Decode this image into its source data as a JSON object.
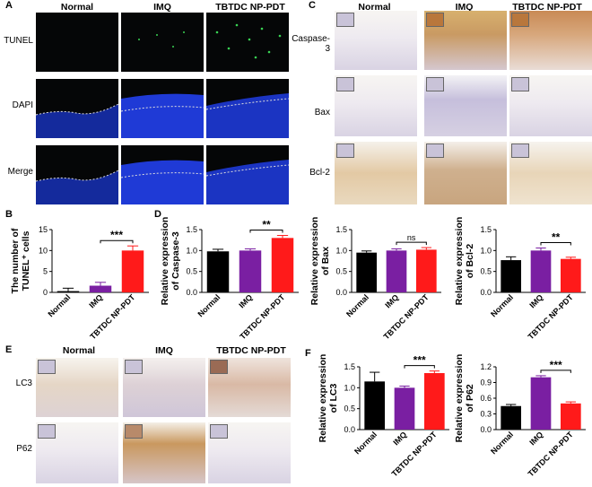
{
  "panels": {
    "A": {
      "letter": "A",
      "cols": [
        "Normal",
        "IMQ",
        "TBTDC NP-PDT"
      ],
      "rows": [
        "TUNEL",
        "DAPI",
        "Merge"
      ]
    },
    "C": {
      "letter": "C",
      "cols": [
        "Normal",
        "IMQ",
        "TBTDC NP-PDT"
      ],
      "rows": [
        "Caspase-3",
        "Bax",
        "Bcl-2"
      ]
    },
    "E": {
      "letter": "E",
      "cols": [
        "Normal",
        "IMQ",
        "TBTDC NP-PDT"
      ],
      "rows": [
        "LC3",
        "P62"
      ]
    },
    "B": {
      "letter": "B"
    },
    "D": {
      "letter": "D"
    },
    "F": {
      "letter": "F"
    }
  },
  "colors": {
    "Normal": "#000000",
    "IMQ": "#7a1fa2",
    "TBTDC NP-PDT": "#ff1a1a",
    "tunel_green": "#39d353",
    "dapi_blue": "#1f3ad6",
    "ihc_brown": "#b9773c",
    "ihc_purple": "#8f86b8"
  },
  "chart_data": [
    {
      "id": "B",
      "type": "bar",
      "categories": [
        "Normal",
        "IMQ",
        "TBTDC NP-PDT"
      ],
      "values": [
        0.3,
        1.6,
        10
      ],
      "errors": [
        0.7,
        0.8,
        1.1
      ],
      "ylabel": "The number of TUNEL⁺ cells",
      "ylim": [
        0,
        15
      ],
      "yticks": [
        0,
        5,
        10,
        15
      ],
      "sig": {
        "from": 1,
        "to": 2,
        "label": "***"
      }
    },
    {
      "id": "D",
      "type": "bar",
      "categories": [
        "Normal",
        "IMQ",
        "TBTDC NP-PDT"
      ],
      "values": [
        0.98,
        1.0,
        1.3
      ],
      "errors": [
        0.05,
        0.04,
        0.06
      ],
      "ylabel": "Relative expression of Caspase-3",
      "ylim": [
        0,
        1.5
      ],
      "yticks": [
        "0.0",
        "0.5",
        "1.0",
        "1.5"
      ],
      "sig": {
        "from": 1,
        "to": 2,
        "label": "**"
      }
    },
    {
      "id": "Bax",
      "type": "bar",
      "categories": [
        "Normal",
        "IMQ",
        "TBTDC NP-PDT"
      ],
      "values": [
        0.95,
        1.0,
        1.02
      ],
      "errors": [
        0.04,
        0.04,
        0.05
      ],
      "ylabel": "Relative expression of Bax",
      "ylim": [
        0,
        1.5
      ],
      "yticks": [
        "0.0",
        "0.5",
        "1.0",
        "1.5"
      ],
      "sig": {
        "from": 1,
        "to": 2,
        "label": "ns"
      }
    },
    {
      "id": "Bcl2",
      "type": "bar",
      "categories": [
        "Normal",
        "IMQ",
        "TBTDC NP-PDT"
      ],
      "values": [
        0.77,
        1.0,
        0.8
      ],
      "errors": [
        0.08,
        0.06,
        0.04
      ],
      "ylabel": "Relative expression of Bcl-2",
      "ylim": [
        0,
        1.5
      ],
      "yticks": [
        "0.0",
        "0.5",
        "1.0",
        "1.5"
      ],
      "sig": {
        "from": 1,
        "to": 2,
        "label": "**"
      }
    },
    {
      "id": "LC3",
      "type": "bar",
      "categories": [
        "Normal",
        "IMQ",
        "TBTDC NP-PDT"
      ],
      "values": [
        1.15,
        1.0,
        1.35
      ],
      "errors": [
        0.22,
        0.04,
        0.05
      ],
      "ylabel": "Relative expression of LC3",
      "ylim": [
        0,
        1.5
      ],
      "yticks": [
        "0.0",
        "0.5",
        "1.0",
        "1.5"
      ],
      "sig": {
        "from": 1,
        "to": 2,
        "label": "***"
      }
    },
    {
      "id": "P62",
      "type": "bar",
      "categories": [
        "Normal",
        "IMQ",
        "TBTDC NP-PDT"
      ],
      "values": [
        0.45,
        1.0,
        0.5
      ],
      "errors": [
        0.03,
        0.03,
        0.03
      ],
      "ylabel": "Relative expression of P62",
      "ylim": [
        0,
        1.2
      ],
      "yticks": [
        "0.0",
        "0.3",
        "0.6",
        "0.9",
        "1.2"
      ],
      "sig": {
        "from": 1,
        "to": 2,
        "label": "***"
      }
    }
  ]
}
